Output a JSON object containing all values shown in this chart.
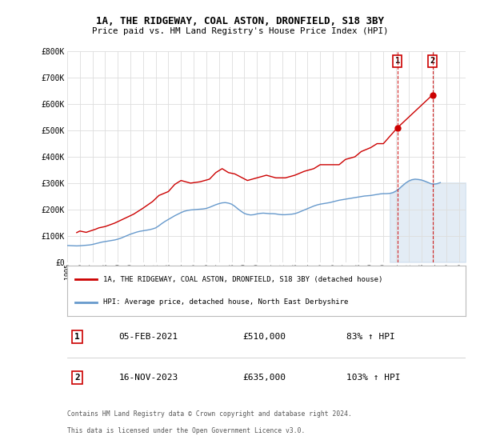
{
  "title_line1": "1A, THE RIDGEWAY, COAL ASTON, DRONFIELD, S18 3BY",
  "title_line2": "Price paid vs. HM Land Registry's House Price Index (HPI)",
  "ylabel_ticks": [
    "£0",
    "£100K",
    "£200K",
    "£300K",
    "£400K",
    "£500K",
    "£600K",
    "£700K",
    "£800K"
  ],
  "ytick_values": [
    0,
    100000,
    200000,
    300000,
    400000,
    500000,
    600000,
    700000,
    800000
  ],
  "ylim": [
    0,
    800000
  ],
  "xlim_start": 1995.0,
  "xlim_end": 2026.5,
  "xtick_years": [
    1995,
    1996,
    1997,
    1998,
    1999,
    2000,
    2001,
    2002,
    2003,
    2004,
    2005,
    2006,
    2007,
    2008,
    2009,
    2010,
    2011,
    2012,
    2013,
    2014,
    2015,
    2016,
    2017,
    2018,
    2019,
    2020,
    2021,
    2022,
    2023,
    2024,
    2025,
    2026
  ],
  "hpi_color": "#6699cc",
  "price_color": "#cc0000",
  "vline_color": "#cc0000",
  "background_color": "#ffffff",
  "grid_color": "#dddddd",
  "legend_label_red": "1A, THE RIDGEWAY, COAL ASTON, DRONFIELD, S18 3BY (detached house)",
  "legend_label_blue": "HPI: Average price, detached house, North East Derbyshire",
  "annotation1_date": "05-FEB-2021",
  "annotation1_price": "£510,000",
  "annotation1_hpi": "83% ↑ HPI",
  "annotation1_year": 2021.1,
  "annotation2_date": "16-NOV-2023",
  "annotation2_price": "£635,000",
  "annotation2_hpi": "103% ↑ HPI",
  "annotation2_year": 2023.88,
  "sale1_value": 510000,
  "sale2_value": 635000,
  "footer_line1": "Contains HM Land Registry data © Crown copyright and database right 2024.",
  "footer_line2": "This data is licensed under the Open Government Licence v3.0.",
  "hpi_data_x": [
    1995.0,
    1995.25,
    1995.5,
    1995.75,
    1996.0,
    1996.25,
    1996.5,
    1996.75,
    1997.0,
    1997.25,
    1997.5,
    1997.75,
    1998.0,
    1998.25,
    1998.5,
    1998.75,
    1999.0,
    1999.25,
    1999.5,
    1999.75,
    2000.0,
    2000.25,
    2000.5,
    2000.75,
    2001.0,
    2001.25,
    2001.5,
    2001.75,
    2002.0,
    2002.25,
    2002.5,
    2002.75,
    2003.0,
    2003.25,
    2003.5,
    2003.75,
    2004.0,
    2004.25,
    2004.5,
    2004.75,
    2005.0,
    2005.25,
    2005.5,
    2005.75,
    2006.0,
    2006.25,
    2006.5,
    2006.75,
    2007.0,
    2007.25,
    2007.5,
    2007.75,
    2008.0,
    2008.25,
    2008.5,
    2008.75,
    2009.0,
    2009.25,
    2009.5,
    2009.75,
    2010.0,
    2010.25,
    2010.5,
    2010.75,
    2011.0,
    2011.25,
    2011.5,
    2011.75,
    2012.0,
    2012.25,
    2012.5,
    2012.75,
    2013.0,
    2013.25,
    2013.5,
    2013.75,
    2014.0,
    2014.25,
    2014.5,
    2014.75,
    2015.0,
    2015.25,
    2015.5,
    2015.75,
    2016.0,
    2016.25,
    2016.5,
    2016.75,
    2017.0,
    2017.25,
    2017.5,
    2017.75,
    2018.0,
    2018.25,
    2018.5,
    2018.75,
    2019.0,
    2019.25,
    2019.5,
    2019.75,
    2020.0,
    2020.25,
    2020.5,
    2020.75,
    2021.0,
    2021.25,
    2021.5,
    2021.75,
    2022.0,
    2022.25,
    2022.5,
    2022.75,
    2023.0,
    2023.25,
    2023.5,
    2023.75,
    2024.0,
    2024.25,
    2024.5
  ],
  "hpi_data_y": [
    63000,
    62500,
    62000,
    61500,
    62000,
    63000,
    64000,
    65000,
    67000,
    70000,
    73000,
    76000,
    78000,
    80000,
    82000,
    84000,
    87000,
    91000,
    96000,
    101000,
    106000,
    110000,
    114000,
    117000,
    119000,
    121000,
    123000,
    126000,
    130000,
    138000,
    147000,
    155000,
    162000,
    169000,
    176000,
    182000,
    188000,
    193000,
    196000,
    198000,
    199000,
    200000,
    201000,
    202000,
    204000,
    208000,
    213000,
    218000,
    222000,
    225000,
    226000,
    224000,
    220000,
    212000,
    202000,
    193000,
    185000,
    181000,
    179000,
    180000,
    183000,
    185000,
    186000,
    185000,
    184000,
    184000,
    183000,
    181000,
    180000,
    180000,
    181000,
    182000,
    184000,
    188000,
    193000,
    198000,
    203000,
    208000,
    213000,
    217000,
    220000,
    222000,
    224000,
    226000,
    229000,
    232000,
    235000,
    237000,
    239000,
    241000,
    243000,
    245000,
    247000,
    249000,
    251000,
    252000,
    253000,
    255000,
    257000,
    259000,
    260000,
    260000,
    261000,
    264000,
    270000,
    279000,
    290000,
    300000,
    308000,
    313000,
    315000,
    314000,
    312000,
    308000,
    303000,
    298000,
    296000,
    298000,
    302000
  ],
  "price_data_x": [
    1995.75,
    1996.0,
    1996.5,
    1997.25,
    1997.5,
    1998.0,
    1998.75,
    1999.5,
    2000.25,
    2001.0,
    2001.75,
    2002.25,
    2003.0,
    2003.5,
    2004.0,
    2004.75,
    2005.5,
    2006.25,
    2006.75,
    2007.25,
    2007.75,
    2008.25,
    2009.25,
    2010.0,
    2010.75,
    2011.5,
    2012.25,
    2013.0,
    2013.75,
    2014.5,
    2015.0,
    2015.75,
    2016.5,
    2017.0,
    2017.75,
    2018.25,
    2019.0,
    2019.5,
    2020.0,
    2021.1,
    2023.88
  ],
  "price_data_y": [
    112000,
    118000,
    113000,
    125000,
    130000,
    135000,
    148000,
    165000,
    182000,
    205000,
    230000,
    253000,
    268000,
    295000,
    310000,
    300000,
    305000,
    315000,
    340000,
    355000,
    340000,
    335000,
    310000,
    320000,
    330000,
    320000,
    320000,
    330000,
    345000,
    355000,
    370000,
    370000,
    370000,
    390000,
    400000,
    420000,
    435000,
    450000,
    450000,
    510000,
    635000
  ]
}
